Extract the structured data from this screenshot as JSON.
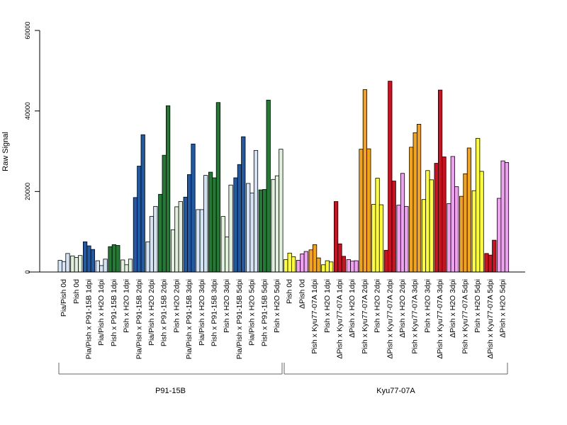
{
  "chart_data": {
    "type": "bar",
    "ylabel": "Raw Signal",
    "ylim": [
      0,
      60000
    ],
    "yticks": [
      0,
      20000,
      40000,
      60000
    ],
    "grid": false,
    "colors": {
      "pale_blue": "#d4e4f4",
      "dark_blue": "#1f5aa6",
      "pale_green": "#e0f0dc",
      "dark_green": "#237a35",
      "yellow": "#ffff33",
      "pink": "#f0a0f0",
      "orange": "#f5a316",
      "red": "#d0101e"
    },
    "groups": [
      {
        "label": "Pia/Pish 0d",
        "color": "pale_blue",
        "values": [
          2900,
          2600,
          4600
        ]
      },
      {
        "label": "Pish 0d",
        "color": "pale_green",
        "values": [
          4000,
          3600,
          4100
        ]
      },
      {
        "label": "Pia/Pish x P91-15B 1dpi",
        "color": "dark_blue",
        "values": [
          7500,
          6500,
          5600
        ]
      },
      {
        "label": "Pia/Pish x H2O 1dpi",
        "color": "pale_blue",
        "values": [
          2800,
          1600,
          3200
        ]
      },
      {
        "label": "Pish x P91-15B 1dpi",
        "color": "dark_green",
        "values": [
          6300,
          6800,
          6600
        ]
      },
      {
        "label": "Pish x H2O 1dpi",
        "color": "pale_green",
        "values": [
          3000,
          1800,
          3200
        ]
      },
      {
        "label": "Pia/Pish x P91-15B 2dpi",
        "color": "dark_blue",
        "values": [
          18500,
          26300,
          34100
        ]
      },
      {
        "label": "Pia/Pish x H2O 2dpi",
        "color": "pale_blue",
        "values": [
          7500,
          13800,
          16300
        ]
      },
      {
        "label": "Pish x P91-15B 2dpi",
        "color": "dark_green",
        "values": [
          19300,
          29000,
          41300
        ]
      },
      {
        "label": "Pish x H2O 2dpi",
        "color": "pale_green",
        "values": [
          10500,
          16200,
          17500
        ]
      },
      {
        "label": "Pia/Pish x P91-15B 3dpi",
        "color": "dark_blue",
        "values": [
          18600,
          24200,
          31800
        ]
      },
      {
        "label": "Pia/Pish x H2O 3dpi",
        "color": "pale_blue",
        "values": [
          15500,
          15500,
          24000
        ]
      },
      {
        "label": "Pish x P91-15B 3dpi",
        "color": "dark_green",
        "values": [
          24800,
          23400,
          42100
        ]
      },
      {
        "label": "Pish x H2O 3dpi",
        "color": "pale_green",
        "values": [
          13800,
          8700,
          21600
        ]
      },
      {
        "label": "Pia/Pish x P91-15B 5dpi",
        "color": "dark_blue",
        "values": [
          23400,
          26700,
          33600
        ]
      },
      {
        "label": "Pia/Pish x H2O 5dpi",
        "color": "pale_blue",
        "values": [
          22000,
          19600,
          30200
        ]
      },
      {
        "label": "Pish x P91-15B 5dpi",
        "color": "dark_green",
        "values": [
          20400,
          20500,
          42700
        ]
      },
      {
        "label": "Pish x H2O 5dpi",
        "color": "pale_green",
        "values": [
          23000,
          23900,
          30500
        ]
      },
      {
        "label": "Pish 0d",
        "color": "yellow",
        "values": [
          3100,
          4700,
          3800
        ]
      },
      {
        "label": "ΔPish 0d",
        "color": "pink",
        "values": [
          2900,
          4500,
          5100
        ]
      },
      {
        "label": "Pish x Kyu77-07A 1dpi",
        "color": "orange",
        "values": [
          5500,
          6800,
          3500
        ]
      },
      {
        "label": "Pish x H2O 1dpi",
        "color": "yellow",
        "values": [
          1800,
          2800,
          2500
        ]
      },
      {
        "label": "ΔPish x Kyu77-07A 1dpi",
        "color": "red",
        "values": [
          17500,
          7000,
          3900
        ]
      },
      {
        "label": "ΔPish x H2O 1dpi",
        "color": "pink",
        "values": [
          3100,
          2700,
          2800
        ]
      },
      {
        "label": "Pish x Kyu77-07A 2dpi",
        "color": "orange",
        "values": [
          30500,
          45300,
          30600
        ]
      },
      {
        "label": "Pish x H2O 2dpi",
        "color": "yellow",
        "values": [
          16800,
          23300,
          16700
        ]
      },
      {
        "label": "ΔPish x Kyu77-07A 2dpi",
        "color": "red",
        "values": [
          5400,
          47400,
          22600
        ]
      },
      {
        "label": "ΔPish x H2O 2dpi",
        "color": "pink",
        "values": [
          16600,
          24500,
          16300
        ]
      },
      {
        "label": "Pish x Kyu77-07A 3dpi",
        "color": "orange",
        "values": [
          31000,
          34600,
          36700
        ]
      },
      {
        "label": "Pish x H2O 3dpi",
        "color": "yellow",
        "values": [
          18000,
          25200,
          22900
        ]
      },
      {
        "label": "ΔPish x Kyu77-07A 3dpi",
        "color": "red",
        "values": [
          27000,
          45200,
          28600
        ]
      },
      {
        "label": "ΔPish x H2O 3dpi",
        "color": "pink",
        "values": [
          17000,
          28700,
          21200
        ]
      },
      {
        "label": "Pish x Kyu77-07A 5dpi",
        "color": "orange",
        "values": [
          18800,
          24400,
          30800
        ]
      },
      {
        "label": "Pish x H2O 5dpi",
        "color": "yellow",
        "values": [
          20200,
          33200,
          25000
        ]
      },
      {
        "label": "ΔPish x Kyu77-07A 5dpi",
        "color": "red",
        "values": [
          4600,
          4200,
          7900
        ]
      },
      {
        "label": "ΔPish x H2O 5dpi",
        "color": "pink",
        "values": [
          18300,
          27600,
          27200
        ]
      }
    ],
    "brackets": [
      {
        "label": "P91-15B",
        "from_group": 0,
        "to_group": 17
      },
      {
        "label": "Kyu77-07A",
        "from_group": 18,
        "to_group": 35
      }
    ]
  }
}
